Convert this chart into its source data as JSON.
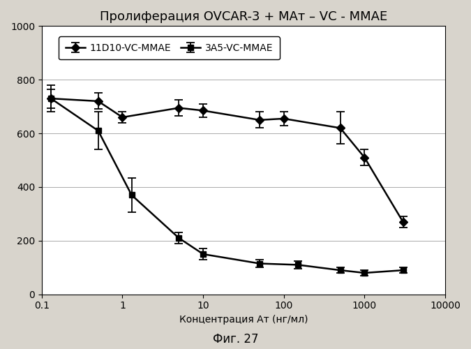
{
  "title": "Пролиферация OVCAR-3 + МАт – VC - MMAE",
  "xlabel": "Концентрация Ат (нг/мл)",
  "figcaption": "Фиг. 27",
  "series1_label": "11D10-VC-MMAE",
  "series2_label": "3А5-VC-MMAE",
  "series1_x": [
    0.13,
    0.5,
    1.0,
    5.0,
    10.0,
    50.0,
    100.0,
    500.0,
    1000.0,
    3000.0
  ],
  "series1_y": [
    730,
    720,
    660,
    695,
    685,
    650,
    655,
    620,
    510,
    270
  ],
  "series1_yerr": [
    50,
    30,
    20,
    30,
    25,
    30,
    25,
    60,
    30,
    20
  ],
  "series2_x": [
    0.13,
    0.5,
    1.3,
    5.0,
    10.0,
    50.0,
    150.0,
    500.0,
    1000.0,
    3000.0
  ],
  "series2_y": [
    730,
    610,
    370,
    210,
    150,
    115,
    110,
    90,
    80,
    90
  ],
  "series2_yerr": [
    35,
    70,
    65,
    20,
    20,
    15,
    15,
    10,
    10,
    10
  ],
  "xlim": [
    0.1,
    10000
  ],
  "ylim": [
    0,
    1000
  ],
  "yticks": [
    0,
    200,
    400,
    600,
    800,
    1000
  ],
  "bg_color": "#d8d4cc",
  "plot_bg_color": "#ffffff",
  "line_color": "#000000",
  "marker1": "D",
  "marker2": "s",
  "title_fontsize": 13,
  "label_fontsize": 10,
  "tick_fontsize": 10,
  "legend_fontsize": 10,
  "caption_fontsize": 12
}
